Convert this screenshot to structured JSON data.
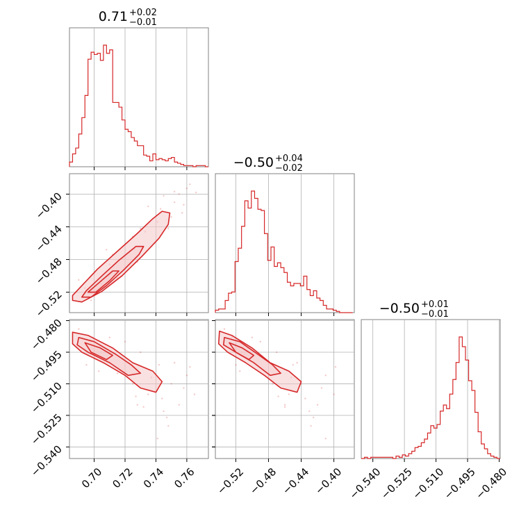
{
  "colors": {
    "accent": "#d62728",
    "fill": "#f4c6c8",
    "grid": "#b0b0b0",
    "frame": "#808080"
  },
  "chart_data": {
    "type": "corner",
    "parameters": [
      {
        "title_value": "0.71",
        "title_plus": "+0.02",
        "title_minus": "−0.01",
        "range": [
          0.684,
          0.774
        ],
        "ticks": [
          0.7,
          0.72,
          0.74,
          0.76
        ],
        "tick_labels": [
          "0.70",
          "0.72",
          "0.74",
          "0.76"
        ]
      },
      {
        "title_value": "−0.50",
        "title_plus": "+0.04",
        "title_minus": "−0.02",
        "range": [
          -0.545,
          -0.375
        ],
        "ticks": [
          -0.52,
          -0.48,
          -0.44,
          -0.4
        ],
        "tick_labels": [
          "−0.52",
          "−0.48",
          "−0.44",
          "−0.40"
        ]
      },
      {
        "title_value": "−0.50",
        "title_plus": "+0.01",
        "title_minus": "−0.01",
        "range": [
          -0.5455,
          -0.4795
        ],
        "ticks": [
          -0.54,
          -0.525,
          -0.51,
          -0.495,
          -0.48
        ],
        "tick_labels": [
          "−0.540",
          "−0.525",
          "−0.510",
          "−0.495",
          "−0.480"
        ]
      }
    ],
    "histograms": [
      {
        "param": 0,
        "edges": [
          0.684,
          0.686,
          0.688,
          0.69,
          0.692,
          0.694,
          0.696,
          0.698,
          0.7,
          0.702,
          0.704,
          0.706,
          0.708,
          0.71,
          0.712,
          0.714,
          0.716,
          0.718,
          0.72,
          0.722,
          0.724,
          0.726,
          0.728,
          0.73,
          0.732,
          0.734,
          0.736,
          0.738,
          0.74,
          0.742,
          0.744,
          0.746,
          0.748,
          0.75,
          0.752,
          0.754,
          0.756,
          0.758,
          0.76,
          0.762,
          0.764,
          0.766,
          0.768,
          0.77,
          0.772,
          0.774
        ],
        "counts": [
          4,
          11,
          16,
          28,
          42,
          61,
          92,
          98,
          96,
          97,
          91,
          104,
          97,
          100,
          55,
          55,
          51,
          40,
          32,
          30,
          25,
          22,
          18,
          18,
          10,
          9,
          5,
          11,
          6,
          7,
          6,
          5,
          7,
          8,
          4,
          3,
          2,
          1,
          1,
          1,
          0,
          1,
          1,
          1,
          0
        ]
      },
      {
        "param": 1,
        "edges": [
          -0.545,
          -0.541,
          -0.537,
          -0.533,
          -0.529,
          -0.525,
          -0.521,
          -0.517,
          -0.513,
          -0.509,
          -0.505,
          -0.501,
          -0.497,
          -0.493,
          -0.489,
          -0.485,
          -0.481,
          -0.477,
          -0.473,
          -0.469,
          -0.465,
          -0.461,
          -0.457,
          -0.453,
          -0.449,
          -0.445,
          -0.441,
          -0.437,
          -0.433,
          -0.429,
          -0.425,
          -0.421,
          -0.417,
          -0.413,
          -0.409,
          -0.405,
          -0.401,
          -0.397,
          -0.393,
          -0.389,
          -0.385,
          -0.381,
          -0.377
        ],
        "counts": [
          2,
          3,
          3,
          10,
          16,
          17,
          42,
          53,
          71,
          92,
          86,
          100,
          94,
          85,
          84,
          65,
          43,
          54,
          38,
          41,
          37,
          33,
          25,
          22,
          24,
          24,
          22,
          30,
          19,
          14,
          18,
          12,
          10,
          6,
          3,
          3,
          2,
          1,
          0,
          0,
          0,
          0
        ]
      },
      {
        "param": 2,
        "edges": [
          -0.5455,
          -0.544,
          -0.5425,
          -0.541,
          -0.5395,
          -0.538,
          -0.5365,
          -0.535,
          -0.5335,
          -0.532,
          -0.5305,
          -0.529,
          -0.5275,
          -0.526,
          -0.5245,
          -0.523,
          -0.5215,
          -0.52,
          -0.5185,
          -0.517,
          -0.5155,
          -0.514,
          -0.5125,
          -0.511,
          -0.5095,
          -0.508,
          -0.5065,
          -0.505,
          -0.5035,
          -0.502,
          -0.5005,
          -0.499,
          -0.4975,
          -0.496,
          -0.4945,
          -0.493,
          -0.4915,
          -0.49,
          -0.4885,
          -0.487,
          -0.4855,
          -0.484,
          -0.4825,
          -0.481,
          -0.4795
        ],
        "counts": [
          0,
          1,
          0,
          1,
          1,
          1,
          1,
          1,
          1,
          1,
          0,
          2,
          1,
          3,
          2,
          4,
          6,
          9,
          10,
          13,
          16,
          21,
          27,
          25,
          28,
          39,
          44,
          41,
          53,
          65,
          79,
          100,
          92,
          81,
          64,
          56,
          38,
          22,
          12,
          8,
          4,
          2,
          1,
          0
        ]
      }
    ],
    "pairs": [
      {
        "x_param": 0,
        "y_param": 1,
        "contours": [
          [
            [
              0.686,
              -0.53
            ],
            [
              0.692,
              -0.532
            ],
            [
              0.705,
              -0.519
            ],
            [
              0.718,
              -0.5
            ],
            [
              0.731,
              -0.476
            ],
            [
              0.742,
              -0.454
            ],
            [
              0.748,
              -0.437
            ],
            [
              0.749,
              -0.423
            ],
            [
              0.744,
              -0.421
            ],
            [
              0.738,
              -0.43
            ],
            [
              0.728,
              -0.448
            ],
            [
              0.715,
              -0.47
            ],
            [
              0.702,
              -0.492
            ],
            [
              0.692,
              -0.512
            ],
            [
              0.686,
              -0.524
            ]
          ],
          [
            [
              0.692,
              -0.526
            ],
            [
              0.698,
              -0.526
            ],
            [
              0.708,
              -0.512
            ],
            [
              0.719,
              -0.493
            ],
            [
              0.729,
              -0.474
            ],
            [
              0.732,
              -0.464
            ],
            [
              0.727,
              -0.464
            ],
            [
              0.716,
              -0.481
            ],
            [
              0.705,
              -0.5
            ],
            [
              0.695,
              -0.518
            ]
          ],
          [
            [
              0.696,
              -0.52
            ],
            [
              0.701,
              -0.52
            ],
            [
              0.71,
              -0.506
            ],
            [
              0.716,
              -0.494
            ],
            [
              0.712,
              -0.494
            ],
            [
              0.704,
              -0.507
            ]
          ]
        ],
        "scatter": [
          [
            0.735,
            -0.415
          ],
          [
            0.752,
            -0.41
          ],
          [
            0.755,
            -0.4
          ],
          [
            0.741,
            -0.434
          ],
          [
            0.726,
            -0.467
          ],
          [
            0.71,
            -0.486
          ],
          [
            0.7,
            -0.497
          ],
          [
            0.76,
            -0.393
          ],
          [
            0.758,
            -0.413
          ],
          [
            0.745,
            -0.402
          ],
          [
            0.72,
            -0.462
          ],
          [
            0.705,
            -0.51
          ],
          [
            0.69,
            -0.505
          ],
          [
            0.715,
            -0.503
          ],
          [
            0.733,
            -0.446
          ],
          [
            0.75,
            -0.428
          ],
          [
            0.762,
            -0.388
          ],
          [
            0.766,
            -0.398
          ],
          [
            0.748,
            -0.442
          ],
          [
            0.728,
            -0.483
          ],
          [
            0.712,
            -0.474
          ],
          [
            0.698,
            -0.53
          ],
          [
            0.739,
            -0.46
          ],
          [
            0.743,
            -0.418
          ],
          [
            0.725,
            -0.452
          ],
          [
            0.757,
            -0.423
          ],
          [
            0.752,
            -0.397
          ],
          [
            0.708,
            -0.468
          ],
          [
            0.694,
            -0.515
          ],
          [
            0.73,
            -0.442
          ]
        ]
      },
      {
        "x_param": 0,
        "y_param": 2,
        "contours": [
          [
            [
              0.686,
              -0.4855
            ],
            [
              0.696,
              -0.487
            ],
            [
              0.712,
              -0.493
            ],
            [
              0.725,
              -0.5
            ],
            [
              0.738,
              -0.504
            ],
            [
              0.744,
              -0.509
            ],
            [
              0.74,
              -0.514
            ],
            [
              0.73,
              -0.512
            ],
            [
              0.72,
              -0.506
            ],
            [
              0.706,
              -0.5
            ],
            [
              0.692,
              -0.495
            ],
            [
              0.686,
              -0.491
            ]
          ],
          [
            [
              0.69,
              -0.488
            ],
            [
              0.7,
              -0.49
            ],
            [
              0.714,
              -0.496
            ],
            [
              0.724,
              -0.501
            ],
            [
              0.73,
              -0.505
            ],
            [
              0.722,
              -0.506
            ],
            [
              0.71,
              -0.5
            ],
            [
              0.696,
              -0.495
            ],
            [
              0.689,
              -0.4915
            ]
          ],
          [
            [
              0.694,
              -0.4905
            ],
            [
              0.704,
              -0.493
            ],
            [
              0.712,
              -0.4965
            ],
            [
              0.708,
              -0.4985
            ],
            [
              0.698,
              -0.495
            ]
          ]
        ],
        "scatter": [
          [
            0.69,
            -0.484
          ],
          [
            0.72,
            -0.49
          ],
          [
            0.75,
            -0.51
          ],
          [
            0.745,
            -0.523
          ],
          [
            0.728,
            -0.52
          ],
          [
            0.76,
            -0.506
          ],
          [
            0.755,
            -0.52
          ],
          [
            0.735,
            -0.515
          ],
          [
            0.715,
            -0.505
          ],
          [
            0.7,
            -0.496
          ],
          [
            0.742,
            -0.501
          ],
          [
            0.765,
            -0.515
          ],
          [
            0.71,
            -0.488
          ],
          [
            0.73,
            -0.495
          ],
          [
            0.748,
            -0.53
          ],
          [
            0.741,
            -0.536
          ],
          [
            0.695,
            -0.501
          ],
          [
            0.725,
            -0.51
          ],
          [
            0.752,
            -0.5
          ],
          [
            0.707,
            -0.493
          ],
          [
            0.732,
            -0.521
          ],
          [
            0.758,
            -0.512
          ],
          [
            0.737,
            -0.507
          ],
          [
            0.718,
            -0.498
          ],
          [
            0.703,
            -0.504
          ],
          [
            0.744,
            -0.517
          ],
          [
            0.762,
            -0.502
          ],
          [
            0.699,
            -0.488
          ],
          [
            0.727,
            -0.516
          ],
          [
            0.747,
            -0.526
          ]
        ]
      },
      {
        "x_param": 1,
        "y_param": 2,
        "contours": [
          [
            [
              -0.54,
              -0.485
            ],
            [
              -0.525,
              -0.487
            ],
            [
              -0.5,
              -0.493
            ],
            [
              -0.478,
              -0.5
            ],
            [
              -0.455,
              -0.504
            ],
            [
              -0.44,
              -0.509
            ],
            [
              -0.445,
              -0.514
            ],
            [
              -0.465,
              -0.512
            ],
            [
              -0.485,
              -0.506
            ],
            [
              -0.508,
              -0.5
            ],
            [
              -0.53,
              -0.495
            ],
            [
              -0.541,
              -0.491
            ]
          ],
          [
            [
              -0.534,
              -0.488
            ],
            [
              -0.515,
              -0.49
            ],
            [
              -0.493,
              -0.496
            ],
            [
              -0.475,
              -0.501
            ],
            [
              -0.465,
              -0.505
            ],
            [
              -0.478,
              -0.506
            ],
            [
              -0.498,
              -0.5
            ],
            [
              -0.52,
              -0.495
            ],
            [
              -0.535,
              -0.4915
            ]
          ],
          [
            [
              -0.528,
              -0.4905
            ],
            [
              -0.512,
              -0.493
            ],
            [
              -0.498,
              -0.4965
            ],
            [
              -0.504,
              -0.4985
            ],
            [
              -0.52,
              -0.495
            ]
          ]
        ],
        "scatter": [
          [
            -0.534,
            -0.484
          ],
          [
            -0.49,
            -0.49
          ],
          [
            -0.44,
            -0.51
          ],
          [
            -0.43,
            -0.523
          ],
          [
            -0.46,
            -0.52
          ],
          [
            -0.41,
            -0.506
          ],
          [
            -0.42,
            -0.52
          ],
          [
            -0.455,
            -0.515
          ],
          [
            -0.48,
            -0.505
          ],
          [
            -0.51,
            -0.496
          ],
          [
            -0.45,
            -0.501
          ],
          [
            -0.4,
            -0.515
          ],
          [
            -0.5,
            -0.488
          ],
          [
            -0.47,
            -0.495
          ],
          [
            -0.428,
            -0.53
          ],
          [
            -0.41,
            -0.536
          ],
          [
            -0.52,
            -0.501
          ],
          [
            -0.475,
            -0.51
          ],
          [
            -0.445,
            -0.5
          ],
          [
            -0.505,
            -0.493
          ],
          [
            -0.46,
            -0.521
          ],
          [
            -0.415,
            -0.512
          ],
          [
            -0.452,
            -0.507
          ],
          [
            -0.485,
            -0.498
          ],
          [
            -0.515,
            -0.504
          ],
          [
            -0.435,
            -0.517
          ],
          [
            -0.398,
            -0.502
          ],
          [
            -0.525,
            -0.488
          ],
          [
            -0.468,
            -0.516
          ],
          [
            -0.425,
            -0.526
          ]
        ]
      }
    ]
  }
}
